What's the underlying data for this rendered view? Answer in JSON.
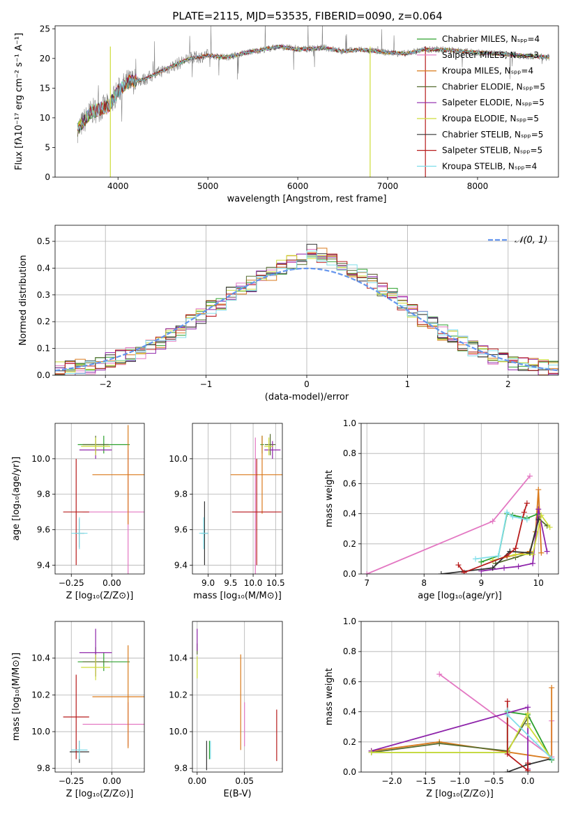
{
  "colors": {
    "chabrier_miles": "#2ca02c",
    "salpeter_miles": "#e377c2",
    "kroupa_miles": "#d97a1c",
    "chabrier_elodie": "#556b2f",
    "salpeter_elodie": "#8e24aa",
    "kroupa_elodie": "#cddc39",
    "chabrier_stelib": "#333333",
    "salpeter_stelib": "#b71c1c",
    "kroupa_stelib": "#80deea",
    "spectrum": "#808080",
    "normal": "#6495ed"
  },
  "chart_data": [
    {
      "type": "line",
      "title": "PLATE=2115, MJD=53535, FIBERID=0090, z=0.064",
      "xlabel": "wavelength [Angstrom, rest frame]",
      "ylabel": "Flux [fλ10⁻¹⁷ erg cm⁻² s⁻¹ A⁻¹]",
      "xlim": [
        3300,
        8900
      ],
      "ylim": [
        0,
        25.5
      ],
      "xticks": [
        "4000",
        "5000",
        "6000",
        "7000",
        "8000"
      ],
      "yticks": [
        "0",
        "5",
        "10",
        "15",
        "20",
        "25"
      ],
      "legend_position": "top-right",
      "legend": [
        "Chabrier MILES, Nₛₚₚ=4",
        "Salpeter MILES, Nₛₚₚ=3",
        "Kroupa MILES, Nₛₚₚ=4",
        "Chabrier ELODIE, Nₛₚₚ=5",
        "Salpeter ELODIE, Nₛₚₚ=5",
        "Kroupa ELODIE, Nₛₚₚ=5",
        "Chabrier STELIB, Nₛₚₚ=5",
        "Salpeter STELIB, Nₛₚₚ=5",
        "Kroupa STELIB, Nₛₚₚ=4"
      ],
      "continuum": {
        "x": [
          3550,
          3700,
          3900,
          4000,
          4100,
          4300,
          4500,
          4800,
          5000,
          5200,
          5500,
          5800,
          6000,
          6300,
          6500,
          6700,
          7000,
          7200,
          7400,
          7600,
          8000,
          8500,
          8800
        ],
        "y": [
          8,
          11,
          12,
          14.5,
          16,
          16.5,
          18,
          20,
          20.5,
          20.2,
          21.2,
          22,
          21.5,
          21.8,
          21.2,
          21.5,
          21,
          20.8,
          21.5,
          21.5,
          21,
          20.5,
          20.2
        ]
      }
    },
    {
      "type": "bar",
      "xlabel": "(data-model)/error",
      "ylabel": "Normed distribution",
      "xlim": [
        -2.5,
        2.5
      ],
      "ylim": [
        0,
        0.56
      ],
      "xticks": [
        "−2",
        "−1",
        "0",
        "1",
        "2"
      ],
      "yticks": [
        "0.0",
        "0.1",
        "0.2",
        "0.3",
        "0.4",
        "0.5"
      ],
      "legend_position": "top-right",
      "normal_label": "𝒩(0, 1)",
      "bin_edges": [
        -2.5,
        -2.4,
        -2.3,
        -2.2,
        -2.1,
        -2.0,
        -1.9,
        -1.8,
        -1.7,
        -1.6,
        -1.5,
        -1.4,
        -1.3,
        -1.2,
        -1.1,
        -1.0,
        -0.9,
        -0.8,
        -0.7,
        -0.6,
        -0.5,
        -0.4,
        -0.3,
        -0.2,
        -0.1,
        0.0,
        0.1,
        0.2,
        0.3,
        0.4,
        0.5,
        0.6,
        0.7,
        0.8,
        0.9,
        1.0,
        1.1,
        1.2,
        1.3,
        1.4,
        1.5,
        1.6,
        1.7,
        1.8,
        1.9,
        2.0,
        2.1,
        2.2,
        2.3,
        2.4,
        2.5
      ],
      "histogram_base": [
        0.02,
        0.025,
        0.03,
        0.035,
        0.045,
        0.055,
        0.065,
        0.075,
        0.09,
        0.11,
        0.12,
        0.15,
        0.17,
        0.2,
        0.22,
        0.25,
        0.27,
        0.3,
        0.32,
        0.34,
        0.36,
        0.38,
        0.4,
        0.42,
        0.44,
        0.46,
        0.45,
        0.43,
        0.41,
        0.39,
        0.37,
        0.35,
        0.32,
        0.3,
        0.27,
        0.24,
        0.21,
        0.19,
        0.16,
        0.14,
        0.12,
        0.1,
        0.085,
        0.07,
        0.055,
        0.045,
        0.04,
        0.035,
        0.03,
        0.025
      ]
    },
    {
      "type": "scatter",
      "xlabel": "Z [log₁₀(Z/Z⊙)]",
      "ylabel": "age  [log₁₀(age/yr)]",
      "xlim": [
        -0.35,
        0.2
      ],
      "ylim": [
        9.35,
        10.2
      ],
      "xticks": [
        "−0.25",
        "0.00"
      ],
      "yticks": [
        "9.4",
        "9.6",
        "9.8",
        "10.0"
      ],
      "points": [
        {
          "series": "chabrier_miles",
          "x": -0.05,
          "y": 10.08,
          "xerr": 0.16,
          "yerr": 0.05
        },
        {
          "series": "salpeter_miles",
          "x": 0.1,
          "y": 9.7,
          "xerr": 0.28,
          "yerr": 0.35
        },
        {
          "series": "kroupa_miles",
          "x": 0.1,
          "y": 9.91,
          "xerr": 0.22,
          "yerr": 0.28
        },
        {
          "series": "chabrier_elodie",
          "x": -0.1,
          "y": 10.08,
          "xerr": 0.08,
          "yerr": 0.05
        },
        {
          "series": "salpeter_elodie",
          "x": -0.1,
          "y": 10.05,
          "xerr": 0.1,
          "yerr": 0.05
        },
        {
          "series": "kroupa_elodie",
          "x": -0.1,
          "y": 10.07,
          "xerr": 0.09,
          "yerr": 0.05
        },
        {
          "series": "chabrier_stelib",
          "x": -0.2,
          "y": 9.58,
          "xerr": 0.03,
          "yerr": 0.08
        },
        {
          "series": "salpeter_stelib",
          "x": -0.22,
          "y": 9.7,
          "xerr": 0.08,
          "yerr": 0.3
        },
        {
          "series": "kroupa_stelib",
          "x": -0.2,
          "y": 9.58,
          "xerr": 0.05,
          "yerr": 0.09
        }
      ]
    },
    {
      "type": "scatter",
      "xlabel": "mass [log₁₀(M/M⊙)]",
      "ylabel": "",
      "xlim": [
        8.65,
        10.65
      ],
      "ylim": [
        9.35,
        10.2
      ],
      "xticks": [
        "9.0",
        "9.5",
        "10.0",
        "10.5"
      ],
      "yticks": [
        "9.4",
        "9.6",
        "9.8",
        "10.0"
      ],
      "points": [
        {
          "series": "chabrier_miles",
          "x": 10.2,
          "y": 10.08,
          "xerr": 0.04,
          "yerr": 0.05
        },
        {
          "series": "salpeter_miles",
          "x": 10.05,
          "y": 9.7,
          "xerr": 0.45,
          "yerr": 0.42
        },
        {
          "series": "kroupa_miles",
          "x": 10.2,
          "y": 9.91,
          "xerr": 0.7,
          "yerr": 0.22
        },
        {
          "series": "chabrier_elodie",
          "x": 10.38,
          "y": 10.08,
          "xerr": 0.12,
          "yerr": 0.06
        },
        {
          "series": "salpeter_elodie",
          "x": 10.43,
          "y": 10.05,
          "xerr": 0.18,
          "yerr": 0.05
        },
        {
          "series": "kroupa_elodie",
          "x": 10.35,
          "y": 10.07,
          "xerr": 0.1,
          "yerr": 0.05
        },
        {
          "series": "chabrier_stelib",
          "x": 8.92,
          "y": 9.58,
          "xerr": 0.08,
          "yerr": 0.18
        },
        {
          "series": "salpeter_stelib",
          "x": 10.08,
          "y": 9.7,
          "xerr": 0.55,
          "yerr": 0.3
        },
        {
          "series": "kroupa_stelib",
          "x": 8.9,
          "y": 9.58,
          "xerr": 0.1,
          "yerr": 0.09
        }
      ]
    },
    {
      "type": "line",
      "xlabel": "age  [log₁₀(age/yr)]",
      "ylabel": "mass weight",
      "xlim": [
        6.9,
        10.35
      ],
      "ylim": [
        0,
        1
      ],
      "xticks": [
        "7",
        "8",
        "9",
        "10"
      ],
      "yticks": [
        "0.0",
        "0.2",
        "0.4",
        "0.6",
        "0.8",
        "1.0"
      ],
      "series": [
        {
          "key": "salpeter_miles",
          "x": [
            7.0,
            9.2,
            9.85
          ],
          "y": [
            0.0,
            0.35,
            0.65
          ]
        },
        {
          "key": "kroupa_miles",
          "x": [
            9.2,
            9.85,
            9.95,
            10.0,
            10.05
          ],
          "y": [
            0.09,
            0.15,
            0.28,
            0.56,
            0.14
          ]
        },
        {
          "key": "chabrier_miles",
          "x": [
            9.0,
            9.3,
            9.45,
            9.55,
            9.8,
            10.0
          ],
          "y": [
            0.08,
            0.12,
            0.4,
            0.39,
            0.37,
            0.4
          ]
        },
        {
          "key": "chabrier_elodie",
          "x": [
            9.25,
            9.6,
            9.85,
            10.0,
            10.15
          ],
          "y": [
            0.07,
            0.11,
            0.14,
            0.37,
            0.32
          ]
        },
        {
          "key": "salpeter_elodie",
          "x": [
            9.0,
            9.4,
            9.65,
            9.9,
            10.0,
            10.15
          ],
          "y": [
            0.02,
            0.04,
            0.05,
            0.07,
            0.43,
            0.15
          ]
        },
        {
          "key": "kroupa_elodie",
          "x": [
            9.2,
            9.6,
            9.9,
            10.05,
            10.2
          ],
          "y": [
            0.09,
            0.13,
            0.13,
            0.39,
            0.31
          ]
        },
        {
          "key": "chabrier_stelib",
          "x": [
            8.3,
            9.2,
            9.5,
            9.85,
            10.0
          ],
          "y": [
            0.0,
            0.04,
            0.15,
            0.14,
            0.36
          ]
        },
        {
          "key": "salpeter_stelib",
          "x": [
            8.6,
            8.7,
            9.45,
            9.6,
            9.75,
            9.8
          ],
          "y": [
            0.06,
            0.01,
            0.12,
            0.17,
            0.41,
            0.47
          ]
        },
        {
          "key": "kroupa_stelib",
          "x": [
            8.9,
            9.3,
            9.45,
            9.55,
            9.7,
            9.8
          ],
          "y": [
            0.1,
            0.12,
            0.41,
            0.38,
            0.37,
            0.36
          ]
        }
      ]
    },
    {
      "type": "scatter",
      "xlabel": "Z [log₁₀(Z/Z⊙)]",
      "ylabel": "mass [log₁₀(M/M⊙)]",
      "xlim": [
        -0.35,
        0.2
      ],
      "ylim": [
        9.78,
        10.6
      ],
      "xticks": [
        "−0.25",
        "0.00"
      ],
      "yticks": [
        "9.8",
        "10.0",
        "10.2",
        "10.4"
      ],
      "points": [
        {
          "series": "chabrier_miles",
          "x": -0.05,
          "y": 10.38,
          "xerr": 0.16,
          "yerr": 0.05
        },
        {
          "series": "salpeter_miles",
          "x": 0.1,
          "y": 10.04,
          "xerr": 0.28,
          "yerr": 0.12
        },
        {
          "series": "kroupa_miles",
          "x": 0.1,
          "y": 10.19,
          "xerr": 0.22,
          "yerr": 0.28
        },
        {
          "series": "chabrier_elodie",
          "x": -0.1,
          "y": 10.38,
          "xerr": 0.08,
          "yerr": 0.08
        },
        {
          "series": "salpeter_elodie",
          "x": -0.1,
          "y": 10.43,
          "xerr": 0.1,
          "yerr": 0.13
        },
        {
          "series": "kroupa_elodie",
          "x": -0.1,
          "y": 10.35,
          "xerr": 0.09,
          "yerr": 0.07
        },
        {
          "series": "chabrier_stelib",
          "x": -0.2,
          "y": 9.89,
          "xerr": 0.06,
          "yerr": 0.06
        },
        {
          "series": "salpeter_stelib",
          "x": -0.22,
          "y": 10.08,
          "xerr": 0.08,
          "yerr": 0.23
        },
        {
          "series": "kroupa_stelib",
          "x": -0.2,
          "y": 9.9,
          "xerr": 0.05,
          "yerr": 0.05
        }
      ]
    },
    {
      "type": "scatter",
      "xlabel": "E(B-V)",
      "ylabel": "",
      "xlim": [
        -0.005,
        0.09
      ],
      "ylim": [
        9.78,
        10.6
      ],
      "xticks": [
        "0.00",
        "0.05"
      ],
      "yticks": [
        "9.8",
        "10.0",
        "10.2",
        "10.4"
      ],
      "points": [
        {
          "series": "chabrier_miles",
          "x": 0.013,
          "y": 9.9,
          "yerr": 0.05
        },
        {
          "series": "salpeter_miles",
          "x": 0.05,
          "y": 10.04,
          "yerr": 0.12
        },
        {
          "series": "kroupa_miles",
          "x": 0.046,
          "y": 10.16,
          "yerr": 0.26
        },
        {
          "series": "chabrier_elodie",
          "x": 0.0,
          "y": 10.45,
          "yerr": 0.03
        },
        {
          "series": "salpeter_elodie",
          "x": 0.0,
          "y": 10.5,
          "yerr": 0.06
        },
        {
          "series": "kroupa_elodie",
          "x": 0.0,
          "y": 10.35,
          "yerr": 0.06
        },
        {
          "series": "chabrier_stelib",
          "x": 0.01,
          "y": 9.87,
          "yerr": 0.08
        },
        {
          "series": "salpeter_stelib",
          "x": 0.084,
          "y": 9.98,
          "yerr": 0.14
        },
        {
          "series": "kroupa_stelib",
          "x": 0.014,
          "y": 9.9,
          "yerr": 0.05
        }
      ]
    },
    {
      "type": "line",
      "xlabel": "Z [log₁₀(Z/Z⊙)]",
      "ylabel": "mass weight",
      "xlim": [
        -2.45,
        0.45
      ],
      "ylim": [
        0,
        1
      ],
      "xticks": [
        "−2.0",
        "−1.5",
        "−1.0",
        "−0.5",
        "0.0"
      ],
      "yticks": [
        "0.0",
        "0.2",
        "0.4",
        "0.6",
        "0.8",
        "1.0"
      ],
      "series": [
        {
          "key": "salpeter_miles",
          "x": [
            -1.3,
            0.35,
            0.35
          ],
          "y": [
            0.65,
            0.1,
            0.34
          ]
        },
        {
          "key": "kroupa_miles",
          "x": [
            -2.3,
            -1.3,
            0.35,
            0.35
          ],
          "y": [
            0.14,
            0.2,
            0.09,
            0.56
          ]
        },
        {
          "key": "chabrier_miles",
          "x": [
            -2.3,
            -0.3,
            -0.3,
            0.0,
            0.35
          ],
          "y": [
            0.13,
            0.13,
            0.4,
            0.38,
            0.08
          ]
        },
        {
          "key": "chabrier_elodie",
          "x": [
            -2.3,
            -1.3,
            -0.3,
            0.0,
            0.0
          ],
          "y": [
            0.13,
            0.19,
            0.14,
            0.36,
            0.32
          ]
        },
        {
          "key": "salpeter_elodie",
          "x": [
            -2.3,
            0.0,
            0.0,
            0.0
          ],
          "y": [
            0.14,
            0.43,
            0.05,
            0.02
          ]
        },
        {
          "key": "kroupa_elodie",
          "x": [
            -2.3,
            -0.3,
            0.0,
            0.0,
            0.35
          ],
          "y": [
            0.13,
            0.13,
            0.39,
            0.31,
            0.09
          ]
        },
        {
          "key": "chabrier_stelib",
          "x": [
            -0.3,
            0.0,
            0.35
          ],
          "y": [
            0.0,
            0.05,
            0.09
          ]
        },
        {
          "key": "salpeter_stelib",
          "x": [
            -0.3,
            -0.3,
            0.0,
            0.0
          ],
          "y": [
            0.47,
            0.12,
            0.01,
            0.06
          ]
        },
        {
          "key": "kroupa_stelib",
          "x": [
            -0.3,
            -0.3,
            0.35
          ],
          "y": [
            0.41,
            0.38,
            0.09
          ]
        }
      ]
    }
  ]
}
